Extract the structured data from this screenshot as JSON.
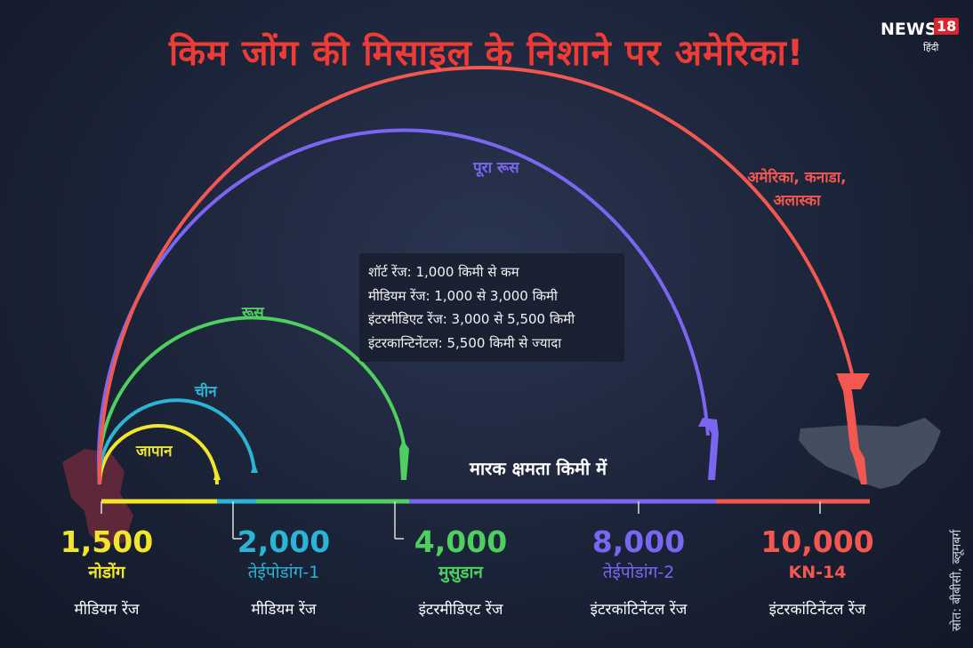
{
  "title": "किम जोंग की मिसाइल के निशाने पर अमेरिका!",
  "logo": {
    "text": "NEWS",
    "number": "18",
    "sub": "हिंदी"
  },
  "arcs": [
    {
      "label": "जापान",
      "color": "#f0e62a"
    },
    {
      "label": "चीन",
      "color": "#2bb4d6"
    },
    {
      "label": "रूस",
      "color": "#4fcf5f"
    },
    {
      "label": "पूरा रूस",
      "color": "#7b66f2"
    },
    {
      "label_line1": "अमेरिका, कनाडा,",
      "label_line2": "अलास्का",
      "color": "#f2584f"
    }
  ],
  "info_box": [
    "शॉर्ट रेंज: 1,000 किमी से कम",
    "मीडियम रेंज: 1,000 से 3,000 किमी",
    "इंटरमीडिएट रेंज: 3,000 से 5,500 किमी",
    "इंटरकान्टिनेंटल: 5,500 किमी से ज्यादा"
  ],
  "axis_title": "मारक क्षमता किमी में",
  "missiles": [
    {
      "value": "1,500",
      "name": "नोडोंग",
      "range": "मीडियम रेंज",
      "color": "#f0e62a"
    },
    {
      "value": "2,000",
      "name": "तेईपोडांग-1",
      "range": "मीडियम रेंज",
      "color": "#2bb4d6"
    },
    {
      "value": "4,000",
      "name": "मुसुडान",
      "range": "इंटरमीडिएट रेंज",
      "color": "#4fcf5f"
    },
    {
      "value": "8,000",
      "name": "तेईपोडांग-2",
      "range": "इंटरकांटिनेंटल रेंज",
      "color": "#7b66f2"
    },
    {
      "value": "10,000",
      "name": "KN-14",
      "range": "इंटरकांटिनेंटल रेंज",
      "color": "#f2584f"
    }
  ],
  "source": "स्रोत: बीबीसी, ब्लूमबर्ग"
}
